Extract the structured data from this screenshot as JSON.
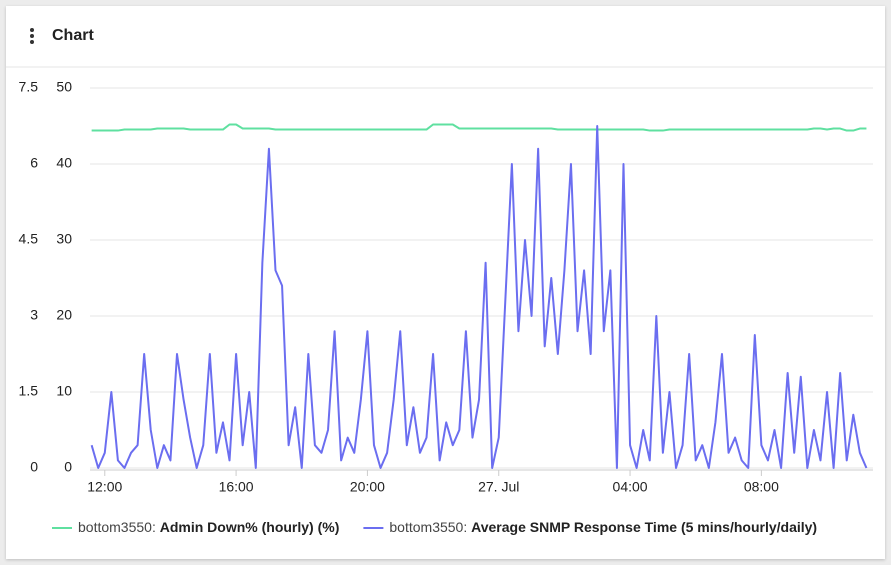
{
  "header": {
    "title": "Chart"
  },
  "chart_data": {
    "type": "line",
    "x": [
      11.6,
      11.8,
      12.0,
      12.2,
      12.4,
      12.6,
      12.8,
      13.0,
      13.2,
      13.4,
      13.6,
      13.8,
      14.0,
      14.2,
      14.4,
      14.6,
      14.8,
      15.0,
      15.2,
      15.4,
      15.6,
      15.8,
      16.0,
      16.2,
      16.4,
      16.6,
      16.8,
      17.0,
      17.2,
      17.4,
      17.6,
      17.8,
      18.0,
      18.2,
      18.4,
      18.6,
      18.8,
      19.0,
      19.2,
      19.4,
      19.6,
      19.8,
      20.0,
      20.2,
      20.4,
      20.6,
      20.8,
      21.0,
      21.2,
      21.4,
      21.6,
      21.8,
      22.0,
      22.2,
      22.4,
      22.6,
      22.8,
      23.0,
      23.2,
      23.4,
      23.6,
      23.8,
      24.0,
      24.2,
      24.4,
      24.6,
      24.8,
      25.0,
      25.2,
      25.4,
      25.6,
      25.8,
      26.0,
      26.2,
      26.4,
      26.6,
      26.8,
      27.0,
      27.2,
      27.4,
      27.6,
      27.8,
      28.0,
      28.2,
      28.4,
      28.6,
      28.8,
      29.0,
      29.2,
      29.4,
      29.6,
      29.8,
      30.0,
      30.2,
      30.4,
      30.6,
      30.8,
      31.0,
      31.2,
      31.4,
      31.6,
      31.8,
      32.0,
      32.2,
      32.4,
      32.6,
      32.8,
      33.0,
      33.2,
      33.4,
      33.6,
      33.8,
      34.0,
      34.2,
      34.4,
      34.6,
      34.8,
      35.0,
      35.2
    ],
    "series": [
      {
        "name": "bottom3550: Admin Down% (hourly) (%)",
        "color": "#5fe0a0",
        "axis": "y",
        "values": [
          6.66,
          6.66,
          6.66,
          6.66,
          6.66,
          6.68,
          6.68,
          6.68,
          6.68,
          6.68,
          6.7,
          6.7,
          6.7,
          6.7,
          6.7,
          6.68,
          6.68,
          6.68,
          6.68,
          6.68,
          6.68,
          6.78,
          6.78,
          6.7,
          6.7,
          6.7,
          6.7,
          6.7,
          6.68,
          6.68,
          6.68,
          6.68,
          6.68,
          6.68,
          6.68,
          6.68,
          6.68,
          6.68,
          6.68,
          6.68,
          6.68,
          6.68,
          6.68,
          6.68,
          6.68,
          6.68,
          6.68,
          6.68,
          6.68,
          6.68,
          6.68,
          6.68,
          6.78,
          6.78,
          6.78,
          6.78,
          6.7,
          6.7,
          6.7,
          6.7,
          6.7,
          6.7,
          6.7,
          6.7,
          6.7,
          6.7,
          6.7,
          6.7,
          6.7,
          6.7,
          6.7,
          6.68,
          6.68,
          6.68,
          6.68,
          6.68,
          6.68,
          6.68,
          6.68,
          6.68,
          6.68,
          6.68,
          6.68,
          6.68,
          6.68,
          6.66,
          6.66,
          6.66,
          6.68,
          6.68,
          6.68,
          6.68,
          6.68,
          6.68,
          6.68,
          6.68,
          6.68,
          6.68,
          6.68,
          6.68,
          6.68,
          6.68,
          6.68,
          6.68,
          6.68,
          6.68,
          6.68,
          6.68,
          6.68,
          6.68,
          6.7,
          6.7,
          6.68,
          6.7,
          6.7,
          6.66,
          6.66,
          6.7,
          6.7
        ]
      },
      {
        "name": "bottom3550: Average SNMP Response Time (5 mins/hourly/daily)",
        "color": "#6b6ef0",
        "axis": "y2",
        "values": [
          3,
          0,
          2,
          10,
          1,
          0,
          2,
          3,
          15,
          5,
          0,
          3,
          1,
          15,
          9,
          4,
          0,
          3,
          15,
          2,
          6,
          1,
          15,
          3,
          10,
          0,
          27,
          42,
          26,
          24,
          3,
          8,
          0,
          15,
          3,
          2,
          5,
          18,
          1,
          4,
          2,
          9,
          18,
          3,
          0,
          2,
          9,
          18,
          3,
          8,
          2,
          4,
          15,
          1,
          6,
          3,
          5,
          18,
          4,
          9,
          27,
          0,
          4,
          22,
          40,
          18,
          30,
          20,
          42,
          16,
          25,
          15,
          26,
          40,
          18,
          26,
          15,
          45,
          18,
          26,
          0,
          40,
          3,
          0,
          5,
          1,
          20,
          2,
          10,
          0,
          3,
          15,
          1,
          3,
          0,
          6,
          15,
          2,
          4,
          1,
          0,
          17.5,
          3,
          1,
          5,
          0,
          12.5,
          2,
          12,
          0,
          5,
          1,
          10,
          0,
          12.5,
          1,
          7,
          2,
          0
        ]
      }
    ],
    "xlim": [
      11.55,
      35.4
    ],
    "xticks": [
      {
        "value": 12,
        "label": "12:00"
      },
      {
        "value": 16,
        "label": "16:00"
      },
      {
        "value": 20,
        "label": "20:00"
      },
      {
        "value": 24,
        "label": "27. Jul"
      },
      {
        "value": 28,
        "label": "04:00"
      },
      {
        "value": 32,
        "label": "08:00"
      }
    ],
    "ylim": [
      0,
      7.5
    ],
    "yticks": [
      0,
      1.5,
      3,
      4.5,
      6,
      7.5
    ],
    "y2lim": [
      0,
      50
    ],
    "y2ticks": [
      0,
      10,
      20,
      30,
      40,
      50
    ],
    "grid": true
  }
}
